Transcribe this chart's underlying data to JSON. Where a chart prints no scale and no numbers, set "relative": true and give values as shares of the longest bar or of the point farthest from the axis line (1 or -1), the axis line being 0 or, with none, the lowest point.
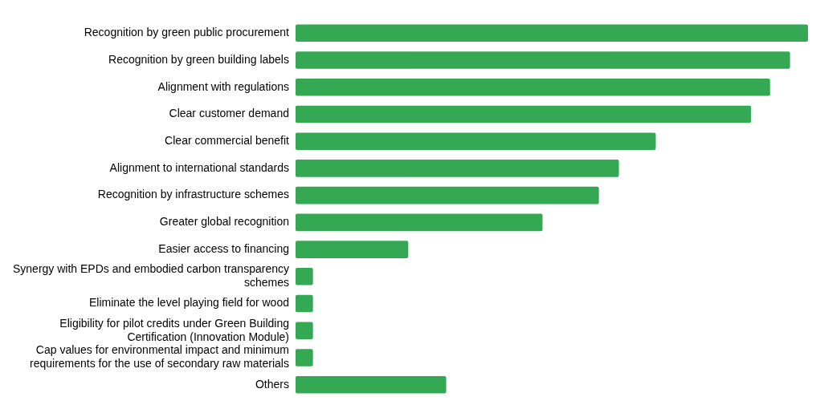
{
  "chart_data": {
    "type": "bar",
    "orientation": "horizontal",
    "relative": true,
    "color": "#34a853",
    "grid": false,
    "legend": false,
    "categories": [
      "Recognition by green public procurement",
      "Recognition by green building labels",
      "Alignment with regulations",
      "Clear customer demand",
      "Clear commercial benefit",
      "Alignment to international standards",
      "Recognition by infrastructure schemes",
      "Greater global recognition",
      "Easier access to financing",
      "Synergy with EPDs and embodied carbon transparency schemes",
      "Eliminate the level playing field for wood",
      "Eligibility for pilot credits under Green Building Certification (Innovation Module)",
      "Cap values for environmental impact and minimum requirements for the use of secondary raw materials",
      "Others"
    ],
    "values": [
      1,
      0.965,
      0.926,
      0.889,
      0.703,
      0.631,
      0.592,
      0.482,
      0.22,
      0.034,
      0.034,
      0.034,
      0.034,
      0.294
    ]
  }
}
